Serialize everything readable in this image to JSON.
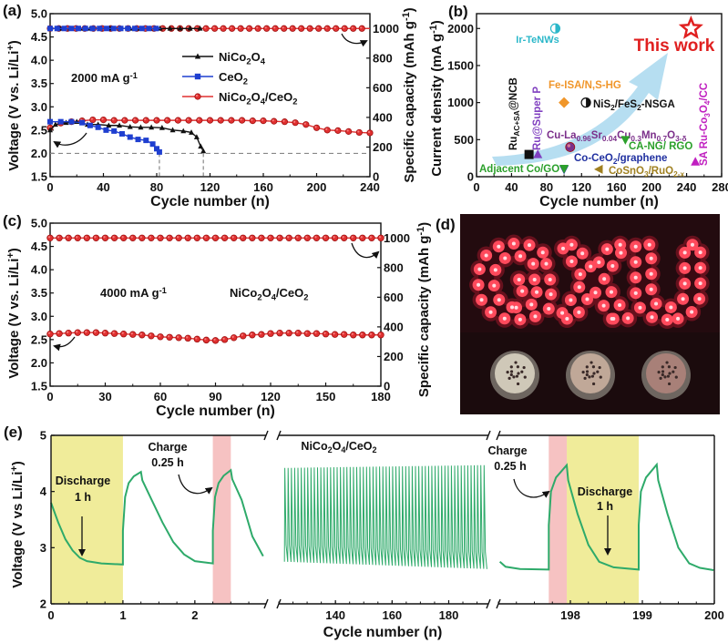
{
  "panel_d": {
    "label": "(d)",
    "led_text": "GXU"
  },
  "chart_data": [
    {
      "panel": "(a)",
      "type": "line",
      "xlabel": "Cycle number (n)",
      "ylabel": "Voltage (V vs. Li/Li^{+})",
      "y2label": "Specific capacity (mAh g^{-1})",
      "xlim": [
        0,
        240
      ],
      "ylim": [
        1.5,
        5.0
      ],
      "y2lim": [
        0,
        1100
      ],
      "x_ticks": [
        "0",
        "40",
        "80",
        "120",
        "160",
        "200",
        "240"
      ],
      "y_ticks": [
        "1.5",
        "2.0",
        "2.5",
        "3.0",
        "3.5",
        "4.0",
        "4.5",
        "5.0"
      ],
      "y2_ticks": [
        "0",
        "200",
        "400",
        "600",
        "800",
        "1000"
      ],
      "annotation": "2000 mA g^{-1}",
      "legend_placement": "center",
      "cutoff_voltage": 2.0,
      "cutoff_cycles": [
        82,
        115
      ],
      "series": [
        {
          "name": "NiCo_{2}O_{4}/CeO_{2}",
          "color": "#e03030",
          "marker": "circle",
          "capacity": 1000,
          "capacity_cycles": [
            0,
            240
          ],
          "voltage": [
            [
              0,
              2.55
            ],
            [
              8,
              2.65
            ],
            [
              16,
              2.68
            ],
            [
              24,
              2.7
            ],
            [
              32,
              2.72
            ],
            [
              40,
              2.72
            ],
            [
              48,
              2.71
            ],
            [
              56,
              2.71
            ],
            [
              64,
              2.71
            ],
            [
              72,
              2.71
            ],
            [
              80,
              2.71
            ],
            [
              88,
              2.71
            ],
            [
              96,
              2.71
            ],
            [
              104,
              2.71
            ],
            [
              112,
              2.71
            ],
            [
              120,
              2.71
            ],
            [
              128,
              2.71
            ],
            [
              136,
              2.71
            ],
            [
              144,
              2.71
            ],
            [
              152,
              2.7
            ],
            [
              160,
              2.7
            ],
            [
              168,
              2.69
            ],
            [
              176,
              2.68
            ],
            [
              184,
              2.66
            ],
            [
              192,
              2.62
            ],
            [
              200,
              2.55
            ],
            [
              208,
              2.5
            ],
            [
              216,
              2.49
            ],
            [
              224,
              2.47
            ],
            [
              232,
              2.45
            ],
            [
              240,
              2.44
            ]
          ]
        },
        {
          "name": "NiCo_{2}O_{4}",
          "color": "#111111",
          "marker": "triangle-up",
          "capacity": 1000,
          "capacity_cycles": [
            0,
            114
          ],
          "voltage": [
            [
              0,
              2.5
            ],
            [
              4,
              2.62
            ],
            [
              12,
              2.66
            ],
            [
              20,
              2.68
            ],
            [
              28,
              2.62
            ],
            [
              36,
              2.62
            ],
            [
              44,
              2.6
            ],
            [
              52,
              2.6
            ],
            [
              60,
              2.57
            ],
            [
              68,
              2.56
            ],
            [
              76,
              2.56
            ],
            [
              84,
              2.55
            ],
            [
              92,
              2.5
            ],
            [
              100,
              2.48
            ],
            [
              106,
              2.45
            ],
            [
              110,
              2.35
            ],
            [
              113,
              2.15
            ],
            [
              115,
              2.05
            ]
          ]
        },
        {
          "name": "CeO_{2}",
          "color": "#1f3fd0",
          "marker": "square",
          "capacity": 1000,
          "capacity_cycles": [
            0,
            83
          ],
          "voltage": [
            [
              0,
              2.68
            ],
            [
              8,
              2.68
            ],
            [
              16,
              2.68
            ],
            [
              24,
              2.66
            ],
            [
              30,
              2.6
            ],
            [
              36,
              2.56
            ],
            [
              42,
              2.5
            ],
            [
              48,
              2.48
            ],
            [
              54,
              2.42
            ],
            [
              60,
              2.35
            ],
            [
              66,
              2.3
            ],
            [
              72,
              2.28
            ],
            [
              77,
              2.2
            ],
            [
              80,
              2.1
            ],
            [
              82,
              2.03
            ]
          ]
        }
      ]
    },
    {
      "panel": "(b)",
      "type": "scatter",
      "xlabel": "Cycle number (n)",
      "ylabel": "Current density (mA g^{-1})",
      "xlim": [
        0,
        280
      ],
      "ylim": [
        0,
        2200
      ],
      "x_ticks": [
        "0",
        "40",
        "80",
        "120",
        "160",
        "200",
        "240",
        "280"
      ],
      "y_ticks": [
        "0",
        "500",
        "1000",
        "1500",
        "2000"
      ],
      "points": [
        {
          "label": "This work",
          "x": 245,
          "y": 2000,
          "color": "#e02020",
          "marker": "star"
        },
        {
          "label": "Ir-TeNWs",
          "x": 90,
          "y": 2000,
          "color": "#2ab7c9",
          "marker": "half-circle"
        },
        {
          "label": "Fe-ISA/N,S-HG",
          "x": 100,
          "y": 1000,
          "color": "#f0962a",
          "marker": "diamond"
        },
        {
          "label": "NiS_{2}/FeS_{2}-NSGA",
          "x": 125,
          "y": 1000,
          "color": "#111111",
          "marker": "half-circle"
        },
        {
          "label": "Cu-La_{0.96}Sr_{0.04}Cu_{0.3}Mn_{0.7}O_{3-δ}",
          "x": 107,
          "y": 400,
          "color": "#7b2f8a",
          "marker": "circle"
        },
        {
          "label": "CA-NG/ RGO",
          "x": 170,
          "y": 500,
          "color": "#2ca02c",
          "marker": "triangle-down"
        },
        {
          "label": "Co-CeO_{2}/graphene",
          "x": 100,
          "y": 100,
          "color": "#2030a0",
          "marker": "triangle-down"
        },
        {
          "label": "Adjacent Co/GO",
          "x": 100,
          "y": 110,
          "color": "#2ca02c",
          "marker": "triangle-down"
        },
        {
          "label": "CoSnO_{3}/RuO_{2-x}",
          "x": 140,
          "y": 100,
          "color": "#a08020",
          "marker": "triangle-left"
        },
        {
          "label": "Ru_{AC+SA}@NCB",
          "x": 60,
          "y": 300,
          "color": "#111111",
          "marker": "square"
        },
        {
          "label": "Ru@Super P",
          "x": 70,
          "y": 300,
          "color": "#8040c0",
          "marker": "triangle-up"
        },
        {
          "label": "SA Ru-Co_{3}O_{4}/CC",
          "x": 250,
          "y": 200,
          "color": "#c020c0",
          "marker": "triangle-up"
        }
      ],
      "trend_arrow_color": "#a9d8ef"
    },
    {
      "panel": "(c)",
      "type": "line",
      "xlabel": "Cycle number (n)",
      "ylabel": "Voltage (V vs. Li/Li^{+})",
      "y2label": "Specific capacity (mAh g^{-1})",
      "xlim": [
        0,
        180
      ],
      "ylim": [
        1.5,
        5.0
      ],
      "y2lim": [
        0,
        1100
      ],
      "x_ticks": [
        "0",
        "30",
        "60",
        "90",
        "120",
        "150",
        "180"
      ],
      "y_ticks": [
        "1.5",
        "2.0",
        "2.5",
        "3.0",
        "3.5",
        "4.0",
        "4.5",
        "5.0"
      ],
      "y2_ticks": [
        "0",
        "200",
        "400",
        "600",
        "800",
        "1000"
      ],
      "annotation": "4000 mA g^{-1}",
      "series": [
        {
          "name": "NiCo_{2}O_{4}/CeO_{2}",
          "color": "#e03030",
          "marker": "circle",
          "capacity": 1000,
          "capacity_cycles": [
            0,
            180
          ],
          "voltage": [
            [
              0,
              2.62
            ],
            [
              5,
              2.63
            ],
            [
              10,
              2.64
            ],
            [
              15,
              2.65
            ],
            [
              20,
              2.65
            ],
            [
              25,
              2.65
            ],
            [
              30,
              2.64
            ],
            [
              35,
              2.63
            ],
            [
              40,
              2.62
            ],
            [
              45,
              2.61
            ],
            [
              50,
              2.6
            ],
            [
              55,
              2.58
            ],
            [
              60,
              2.56
            ],
            [
              65,
              2.55
            ],
            [
              70,
              2.54
            ],
            [
              75,
              2.53
            ],
            [
              80,
              2.51
            ],
            [
              85,
              2.49
            ],
            [
              90,
              2.48
            ],
            [
              95,
              2.5
            ],
            [
              100,
              2.54
            ],
            [
              105,
              2.58
            ],
            [
              110,
              2.6
            ],
            [
              115,
              2.61
            ],
            [
              120,
              2.63
            ],
            [
              125,
              2.64
            ],
            [
              130,
              2.64
            ],
            [
              135,
              2.64
            ],
            [
              140,
              2.63
            ],
            [
              145,
              2.63
            ],
            [
              150,
              2.62
            ],
            [
              155,
              2.61
            ],
            [
              160,
              2.61
            ],
            [
              165,
              2.6
            ],
            [
              170,
              2.6
            ],
            [
              175,
              2.6
            ],
            [
              180,
              2.6
            ]
          ]
        }
      ]
    },
    {
      "panel": "(e)",
      "type": "line",
      "xlabel": "Cycle number (n)",
      "ylabel": "Voltage (V vs Li/Li^{+})",
      "ylim": [
        2,
        5
      ],
      "y_ticks": [
        "2",
        "3",
        "4",
        "5"
      ],
      "color": "#2eaa6a",
      "series_name": "NiCo_{2}O_{4}/CeO_{2}",
      "annotations": {
        "charge": "Charge",
        "charge_time": "0.25 h",
        "discharge": "Discharge",
        "discharge_time": "1 h"
      },
      "discharge_color": "#f0ec9a",
      "charge_color": "#f6c2c2",
      "segments": [
        {
          "xlim": [
            0,
            2.99
          ],
          "x_ticks": [
            "0",
            "1",
            "2"
          ],
          "discharge_band": [
            0,
            1
          ],
          "charge_band": [
            2.25,
            2.5
          ],
          "points": [
            [
              0,
              3.8
            ],
            [
              0.1,
              3.45
            ],
            [
              0.2,
              3.15
            ],
            [
              0.3,
              2.95
            ],
            [
              0.4,
              2.82
            ],
            [
              0.5,
              2.76
            ],
            [
              0.7,
              2.72
            ],
            [
              1.0,
              2.7
            ],
            [
              1.0,
              3.3
            ],
            [
              1.03,
              3.9
            ],
            [
              1.08,
              4.15
            ],
            [
              1.15,
              4.27
            ],
            [
              1.25,
              4.35
            ],
            [
              1.27,
              4.2
            ],
            [
              1.4,
              3.85
            ],
            [
              1.55,
              3.45
            ],
            [
              1.7,
              3.1
            ],
            [
              1.85,
              2.88
            ],
            [
              2.0,
              2.76
            ],
            [
              2.25,
              2.72
            ],
            [
              2.25,
              3.3
            ],
            [
              2.28,
              3.9
            ],
            [
              2.33,
              4.15
            ],
            [
              2.4,
              4.28
            ],
            [
              2.5,
              4.38
            ],
            [
              2.52,
              4.22
            ],
            [
              2.65,
              3.85
            ],
            [
              2.8,
              3.2
            ],
            [
              2.95,
              2.85
            ]
          ]
        },
        {
          "xlim": [
            120,
            194
          ],
          "x_ticks": [
            "140",
            "160",
            "180"
          ],
          "cycle_range": [
            122,
            193.5
          ],
          "v_max": [
            4.42,
            4.47
          ],
          "v_min": [
            2.75,
            2.62
          ]
        },
        {
          "xlim": [
            197,
            200
          ],
          "x_ticks": [
            "198",
            "199",
            "200"
          ],
          "charge_band": [
            197.7,
            197.95
          ],
          "discharge_band": [
            197.95,
            198.95
          ],
          "points": [
            [
              197.02,
              2.75
            ],
            [
              197.1,
              2.66
            ],
            [
              197.3,
              2.62
            ],
            [
              197.7,
              2.61
            ],
            [
              197.7,
              3.4
            ],
            [
              197.73,
              4.0
            ],
            [
              197.8,
              4.25
            ],
            [
              197.95,
              4.47
            ],
            [
              197.97,
              4.2
            ],
            [
              198.1,
              3.6
            ],
            [
              198.25,
              3.05
            ],
            [
              198.4,
              2.75
            ],
            [
              198.6,
              2.65
            ],
            [
              198.95,
              2.61
            ],
            [
              198.95,
              3.4
            ],
            [
              198.98,
              4.0
            ],
            [
              199.05,
              4.25
            ],
            [
              199.2,
              4.48
            ],
            [
              199.22,
              4.2
            ],
            [
              199.35,
              3.6
            ],
            [
              199.5,
              3.0
            ],
            [
              199.65,
              2.72
            ],
            [
              199.8,
              2.64
            ],
            [
              199.99,
              2.6
            ]
          ]
        }
      ]
    }
  ]
}
